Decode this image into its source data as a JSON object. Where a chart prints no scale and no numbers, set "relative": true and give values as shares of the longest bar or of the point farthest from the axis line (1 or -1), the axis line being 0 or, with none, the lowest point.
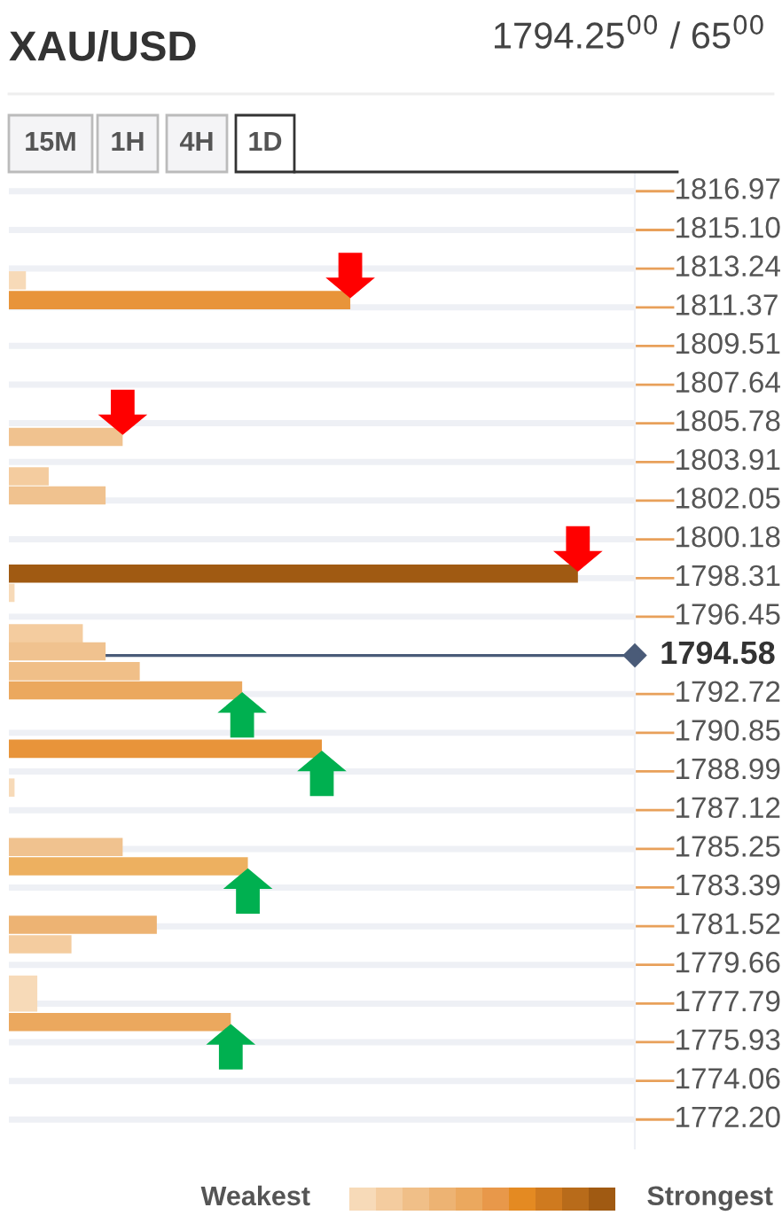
{
  "chart_data": {
    "type": "bar",
    "orientation": "horizontal",
    "relative": true,
    "title": "XAU/USD",
    "subtitle": "1794.25$^{00}$ / 65$^{00}$",
    "x": [
      1812.67,
      1811.72,
      1805.12,
      1803.22,
      1802.3,
      1798.53,
      1797.6,
      1795.65,
      1794.78,
      1793.82,
      1792.9,
      1790.08,
      1788.21,
      1785.34,
      1784.41,
      1781.59,
      1780.65,
      1778.7,
      1777.84,
      1776.9
    ],
    "values": [
      0.03,
      0.6,
      0.2,
      0.07,
      0.17,
      1,
      0.01,
      0.13,
      0.17,
      0.23,
      0.41,
      0.55,
      0.01,
      0.2,
      0.42,
      0.26,
      0.11,
      0.05,
      0.05,
      0.39
    ],
    "colors": [
      "#f7dab8",
      "#e8943a",
      "#f0c28f",
      "#f4cc9f",
      "#f0c28f",
      "#a05a12",
      "#f7dab8",
      "#f4cc9f",
      "#f0c28f",
      "#f0bf88",
      "#eba85e",
      "#e8943a",
      "#f7dab8",
      "#f0c28f",
      "#edb060",
      "#edb373",
      "#f4cc9f",
      "#f7dab8",
      "#f7dab8",
      "#eba85e"
    ],
    "ylim": [
      1770.8,
      1817.9
    ],
    "yticks": [
      1816.97,
      {
        "value": 1815.1,
        "label": "1815.10"
      },
      1813.24,
      1811.37,
      1809.51,
      1807.64,
      1805.78,
      1803.91,
      1802.05,
      1800.18,
      1798.31,
      1796.45,
      1792.72,
      1790.85,
      1788.99,
      1787.12,
      1785.25,
      1783.39,
      1781.52,
      1779.66,
      1777.79,
      1775.93,
      1774.06,
      {
        "value": 1772.2,
        "label": "1772.20"
      }
    ],
    "ref_lines": [
      {
        "axis": "y",
        "value": 1794.58,
        "label": "1794.58",
        "color": "#4a5b78"
      }
    ],
    "grid": "y",
    "annotations": [
      "15M",
      "1H",
      "4H",
      "1D",
      "Weakest",
      "Strongest"
    ]
  }
}
